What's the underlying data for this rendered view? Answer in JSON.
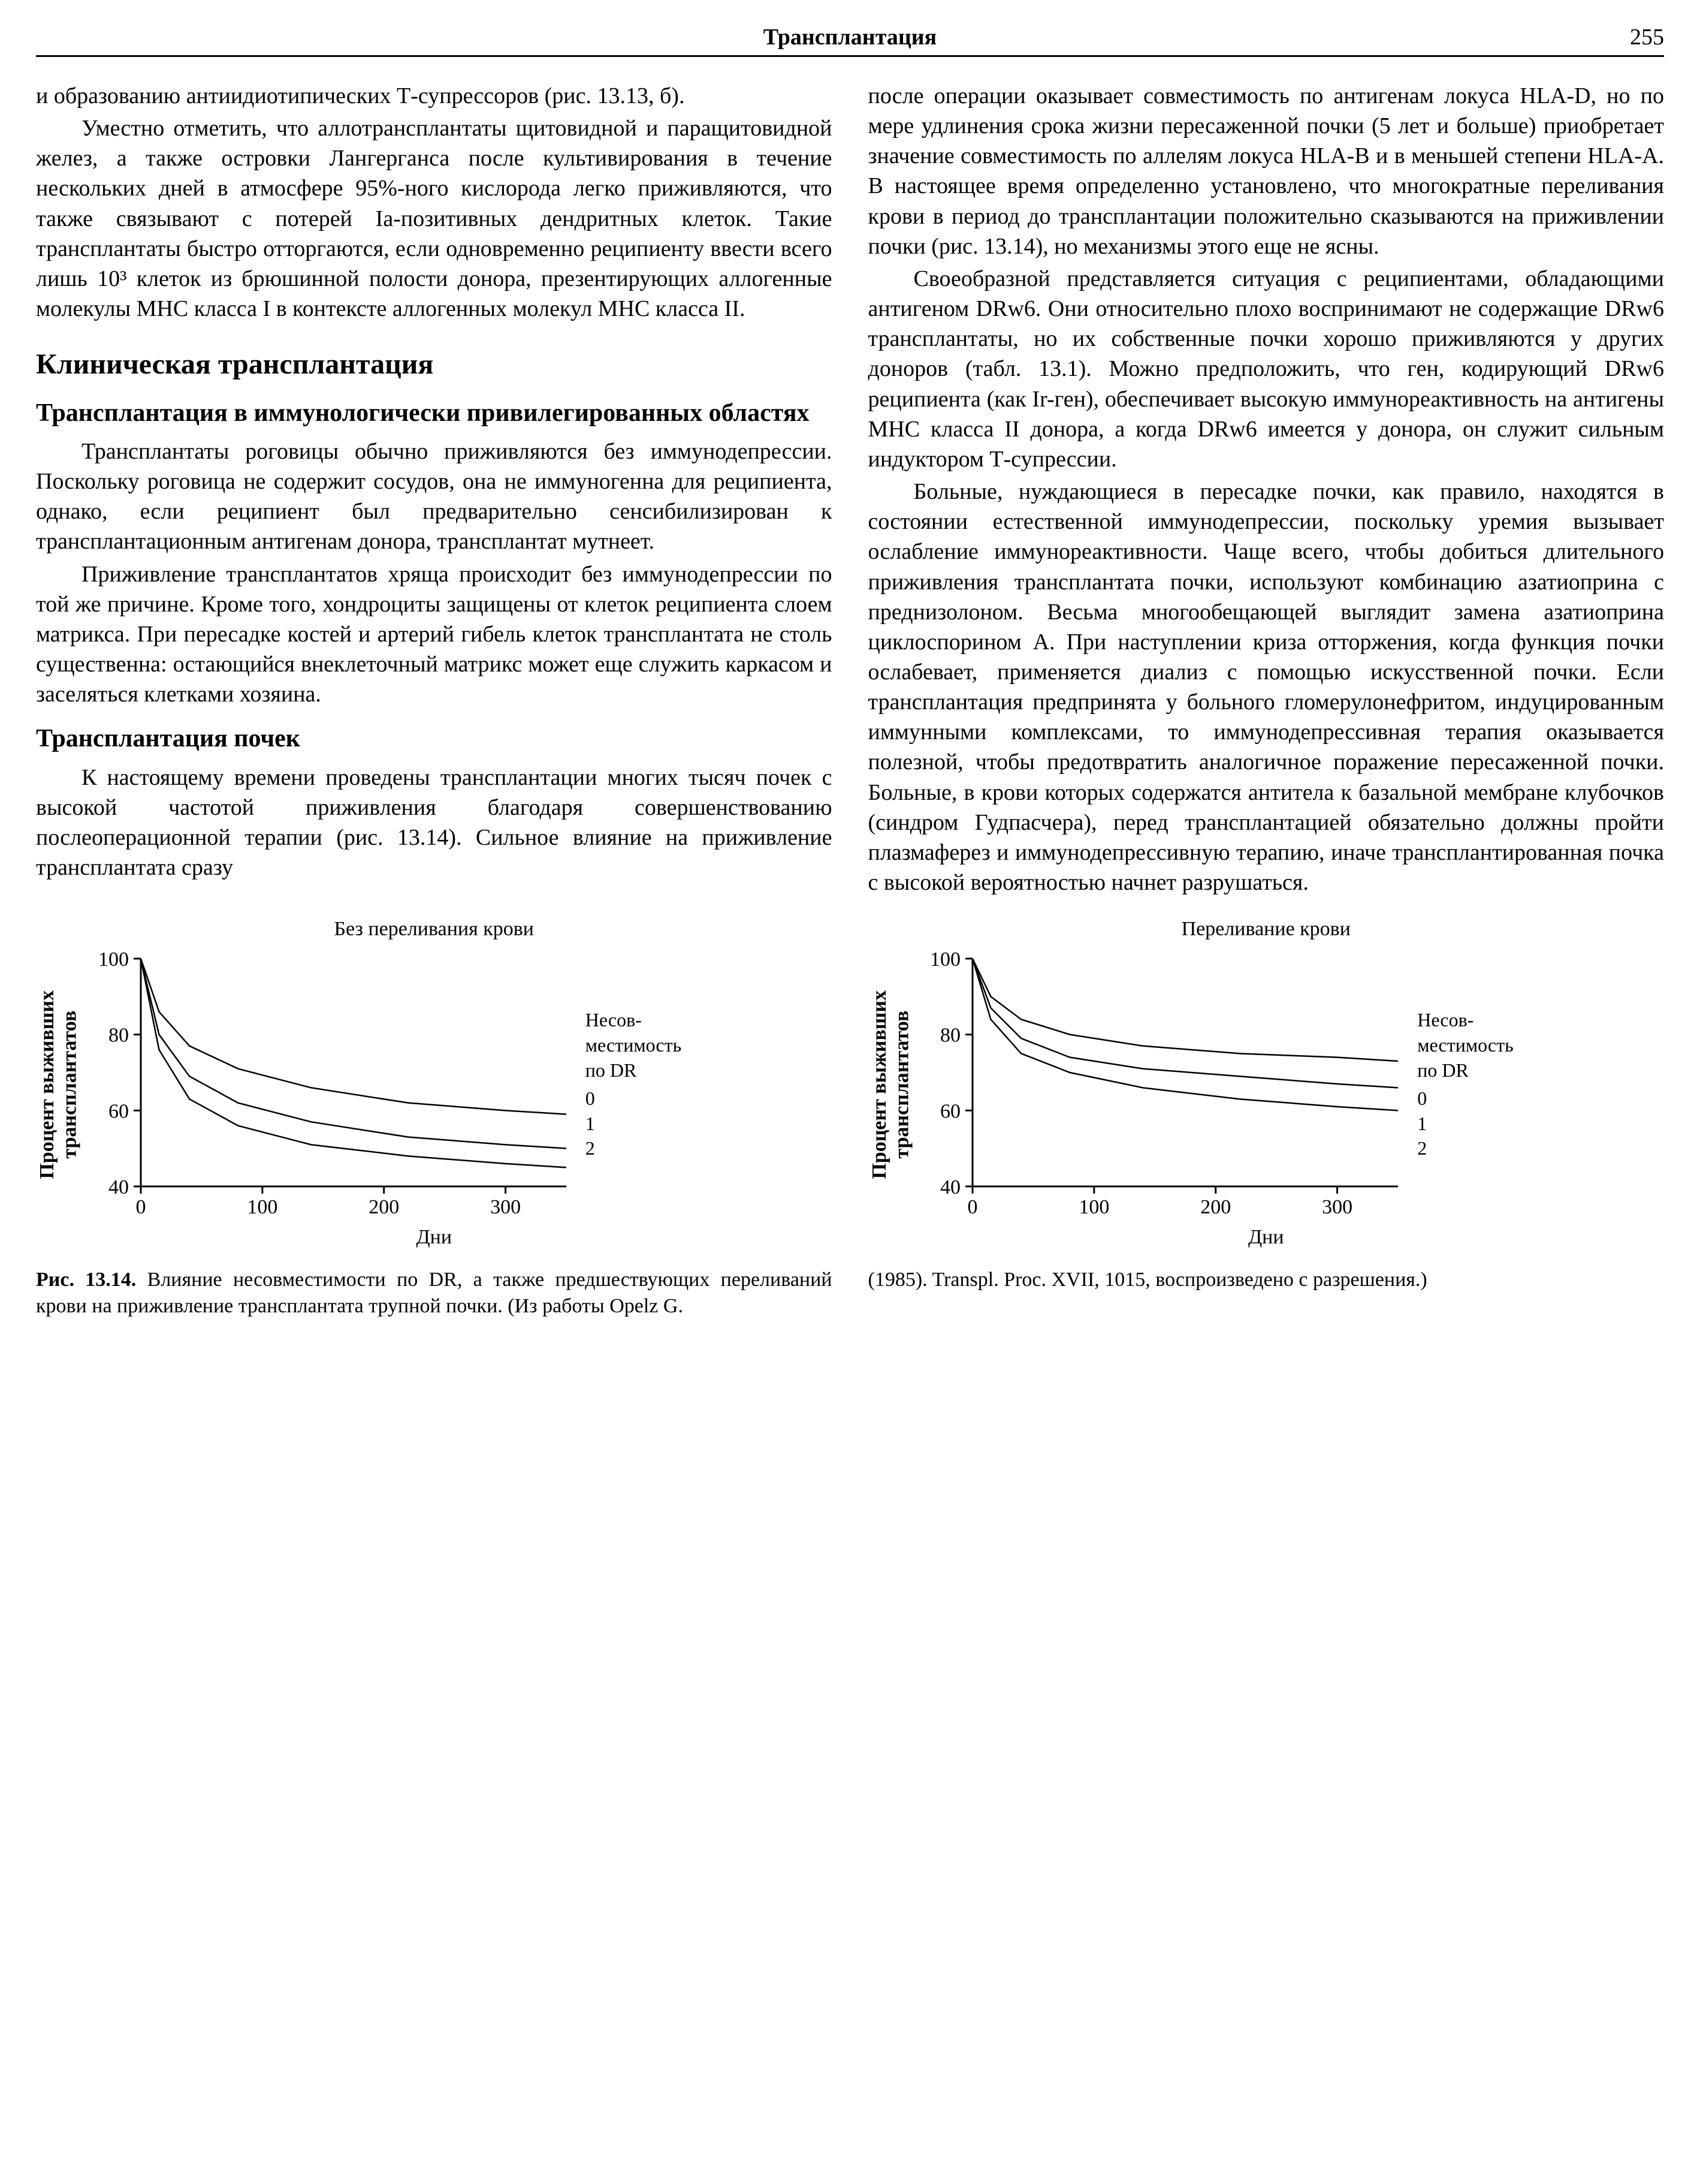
{
  "header": {
    "title": "Трансплантация",
    "page_number": "255"
  },
  "left_column": {
    "p1": "и образованию антиидиотипических Т-супрессоров (рис. 13.13, б).",
    "p2": "Уместно отметить, что аллотрансплантаты щитовидной и паращитовидной желез, а также островки Лангерганса после культивирования в течение нескольких дней в атмосфере 95%-ного кислорода легко приживляются, что также связывают с потерей Ia-позитивных дендритных клеток. Такие трансплантаты быстро отторгаются, если одновременно реципиенту ввести всего лишь 10³ клеток из брюшинной полости донора, презентирующих аллогенные молекулы MHC класса I в контексте аллогенных молекул MHC класса II.",
    "h2": "Клиническая трансплантация",
    "h3a": "Трансплантация в иммунологически привилегированных областях",
    "p3": "Трансплантаты роговицы обычно приживляются без иммунодепрессии. Поскольку роговица не содержит сосудов, она не иммуногенна для реципиента, однако, если реципиент был предварительно сенсибилизирован к трансплантационным антигенам донора, трансплантат мутнеет.",
    "p4": "Приживление трансплантатов хряща происходит без иммунодепрессии по той же причине. Кроме того, хондроциты защищены от клеток реципиента слоем матрикса. При пересадке костей и артерий гибель клеток трансплантата не столь существенна: остающийся внеклеточный матрикс может еще служить каркасом и заселяться клетками хозяина.",
    "h3b": "Трансплантация почек",
    "p5": "К настоящему времени проведены трансплантации многих тысяч почек с высокой частотой приживления благодаря совершенствованию послеоперационной терапии (рис. 13.14). Сильное влияние на приживление трансплантата сразу"
  },
  "right_column": {
    "p1": "после операции оказывает совместимость по антигенам локуса HLA-D, но по мере удлинения срока жизни пересаженной почки (5 лет и больше) приобретает значение совместимость по аллелям локуса HLA-B и в меньшей степени HLA-A. В настоящее время определенно установлено, что многократные переливания крови в период до трансплантации положительно сказываются на приживлении почки (рис. 13.14), но механизмы этого еще не ясны.",
    "p2": "Своеобразной представляется ситуация с реципиентами, обладающими антигеном DRw6. Они относительно плохо воспринимают не содержащие DRw6 трансплантаты, но их собственные почки хорошо приживляются у других доноров (табл. 13.1). Можно предположить, что ген, кодирующий DRw6 реципиента (как Ir-ген), обеспечивает высокую иммунореактивность на антигены MHC класса II донора, а когда DRw6 имеется у донора, он служит сильным индуктором Т-супрессии.",
    "p3": "Больные, нуждающиеся в пересадке почки, как правило, находятся в состоянии естественной иммунодепрессии, поскольку уремия вызывает ослабление иммунореактивности. Чаще всего, чтобы добиться длительного приживления трансплантата почки, используют комбинацию азатиоприна с преднизолоном. Весьма многообещающей выглядит замена азатиоприна циклоспорином A. При наступлении криза отторжения, когда функция почки ослабевает, применяется диализ с помощью искусственной почки. Если трансплантация предпринята у больного гломерулонефритом, индуцированным иммунными комплексами, то иммунодепрессивная терапия оказывается полезной, чтобы предотвратить аналогичное поражение пересаженной почки. Больные, в крови которых содержатся антитела к базальной мембране клубочков (синдром Гудпасчера), перед трансплантацией обязательно должны пройти плазмаферез и иммунодепрессивную терапию, иначе трансплантированная почка с высокой вероятностью начнет разрушаться."
  },
  "figure": {
    "panel_left": {
      "title": "Без переливания крови",
      "ylabel": "Процент выживших\nтрансплантатов",
      "xlabel": "Дни",
      "legend_title": "Несов-\nместимость\nпо DR",
      "legend_items": [
        "0",
        "1",
        "2"
      ],
      "type": "line",
      "xlim": [
        0,
        350
      ],
      "ylim": [
        40,
        100
      ],
      "xticks": [
        0,
        100,
        200,
        300
      ],
      "yticks": [
        40,
        60,
        80,
        100
      ],
      "xtick_labels": [
        "0",
        "100",
        "200",
        "300"
      ],
      "ytick_labels": [
        "40",
        "60",
        "80",
        "100"
      ],
      "line_color": "#000000",
      "line_width": 2.5,
      "background_color": "#ffffff",
      "series": [
        {
          "label": "0",
          "points": [
            [
              0,
              100
            ],
            [
              15,
              86
            ],
            [
              40,
              77
            ],
            [
              80,
              71
            ],
            [
              140,
              66
            ],
            [
              220,
              62
            ],
            [
              300,
              60
            ],
            [
              350,
              59
            ]
          ]
        },
        {
          "label": "1",
          "points": [
            [
              0,
              100
            ],
            [
              15,
              80
            ],
            [
              40,
              69
            ],
            [
              80,
              62
            ],
            [
              140,
              57
            ],
            [
              220,
              53
            ],
            [
              300,
              51
            ],
            [
              350,
              50
            ]
          ]
        },
        {
          "label": "2",
          "points": [
            [
              0,
              100
            ],
            [
              15,
              76
            ],
            [
              40,
              63
            ],
            [
              80,
              56
            ],
            [
              140,
              51
            ],
            [
              220,
              48
            ],
            [
              300,
              46
            ],
            [
              350,
              45
            ]
          ]
        }
      ]
    },
    "panel_right": {
      "title": "Переливание крови",
      "ylabel": "Процент выживших\nтрансплантатов",
      "xlabel": "Дни",
      "legend_title": "Несов-\nместимость\nпо DR",
      "legend_items": [
        "0",
        "1",
        "2"
      ],
      "type": "line",
      "xlim": [
        0,
        350
      ],
      "ylim": [
        40,
        100
      ],
      "xticks": [
        0,
        100,
        200,
        300
      ],
      "yticks": [
        40,
        60,
        80,
        100
      ],
      "xtick_labels": [
        "0",
        "100",
        "200",
        "300"
      ],
      "ytick_labels": [
        "40",
        "60",
        "80",
        "100"
      ],
      "line_color": "#000000",
      "line_width": 2.5,
      "background_color": "#ffffff",
      "series": [
        {
          "label": "0",
          "points": [
            [
              0,
              100
            ],
            [
              15,
              90
            ],
            [
              40,
              84
            ],
            [
              80,
              80
            ],
            [
              140,
              77
            ],
            [
              220,
              75
            ],
            [
              300,
              74
            ],
            [
              350,
              73
            ]
          ]
        },
        {
          "label": "1",
          "points": [
            [
              0,
              100
            ],
            [
              15,
              87
            ],
            [
              40,
              79
            ],
            [
              80,
              74
            ],
            [
              140,
              71
            ],
            [
              220,
              69
            ],
            [
              300,
              67
            ],
            [
              350,
              66
            ]
          ]
        },
        {
          "label": "2",
          "points": [
            [
              0,
              100
            ],
            [
              15,
              84
            ],
            [
              40,
              75
            ],
            [
              80,
              70
            ],
            [
              140,
              66
            ],
            [
              220,
              63
            ],
            [
              300,
              61
            ],
            [
              350,
              60
            ]
          ]
        }
      ]
    },
    "caption_left": "Рис. 13.14. Влияние несовместимости по DR, а также предшествующих переливаний крови на приживление трансплантата трупной почки. (Из работы Opelz G.",
    "caption_right": "(1985). Transpl. Proc. XVII, 1015, воспроизведено с разрешения.)",
    "caption_ref": "Рис. 13.14."
  }
}
